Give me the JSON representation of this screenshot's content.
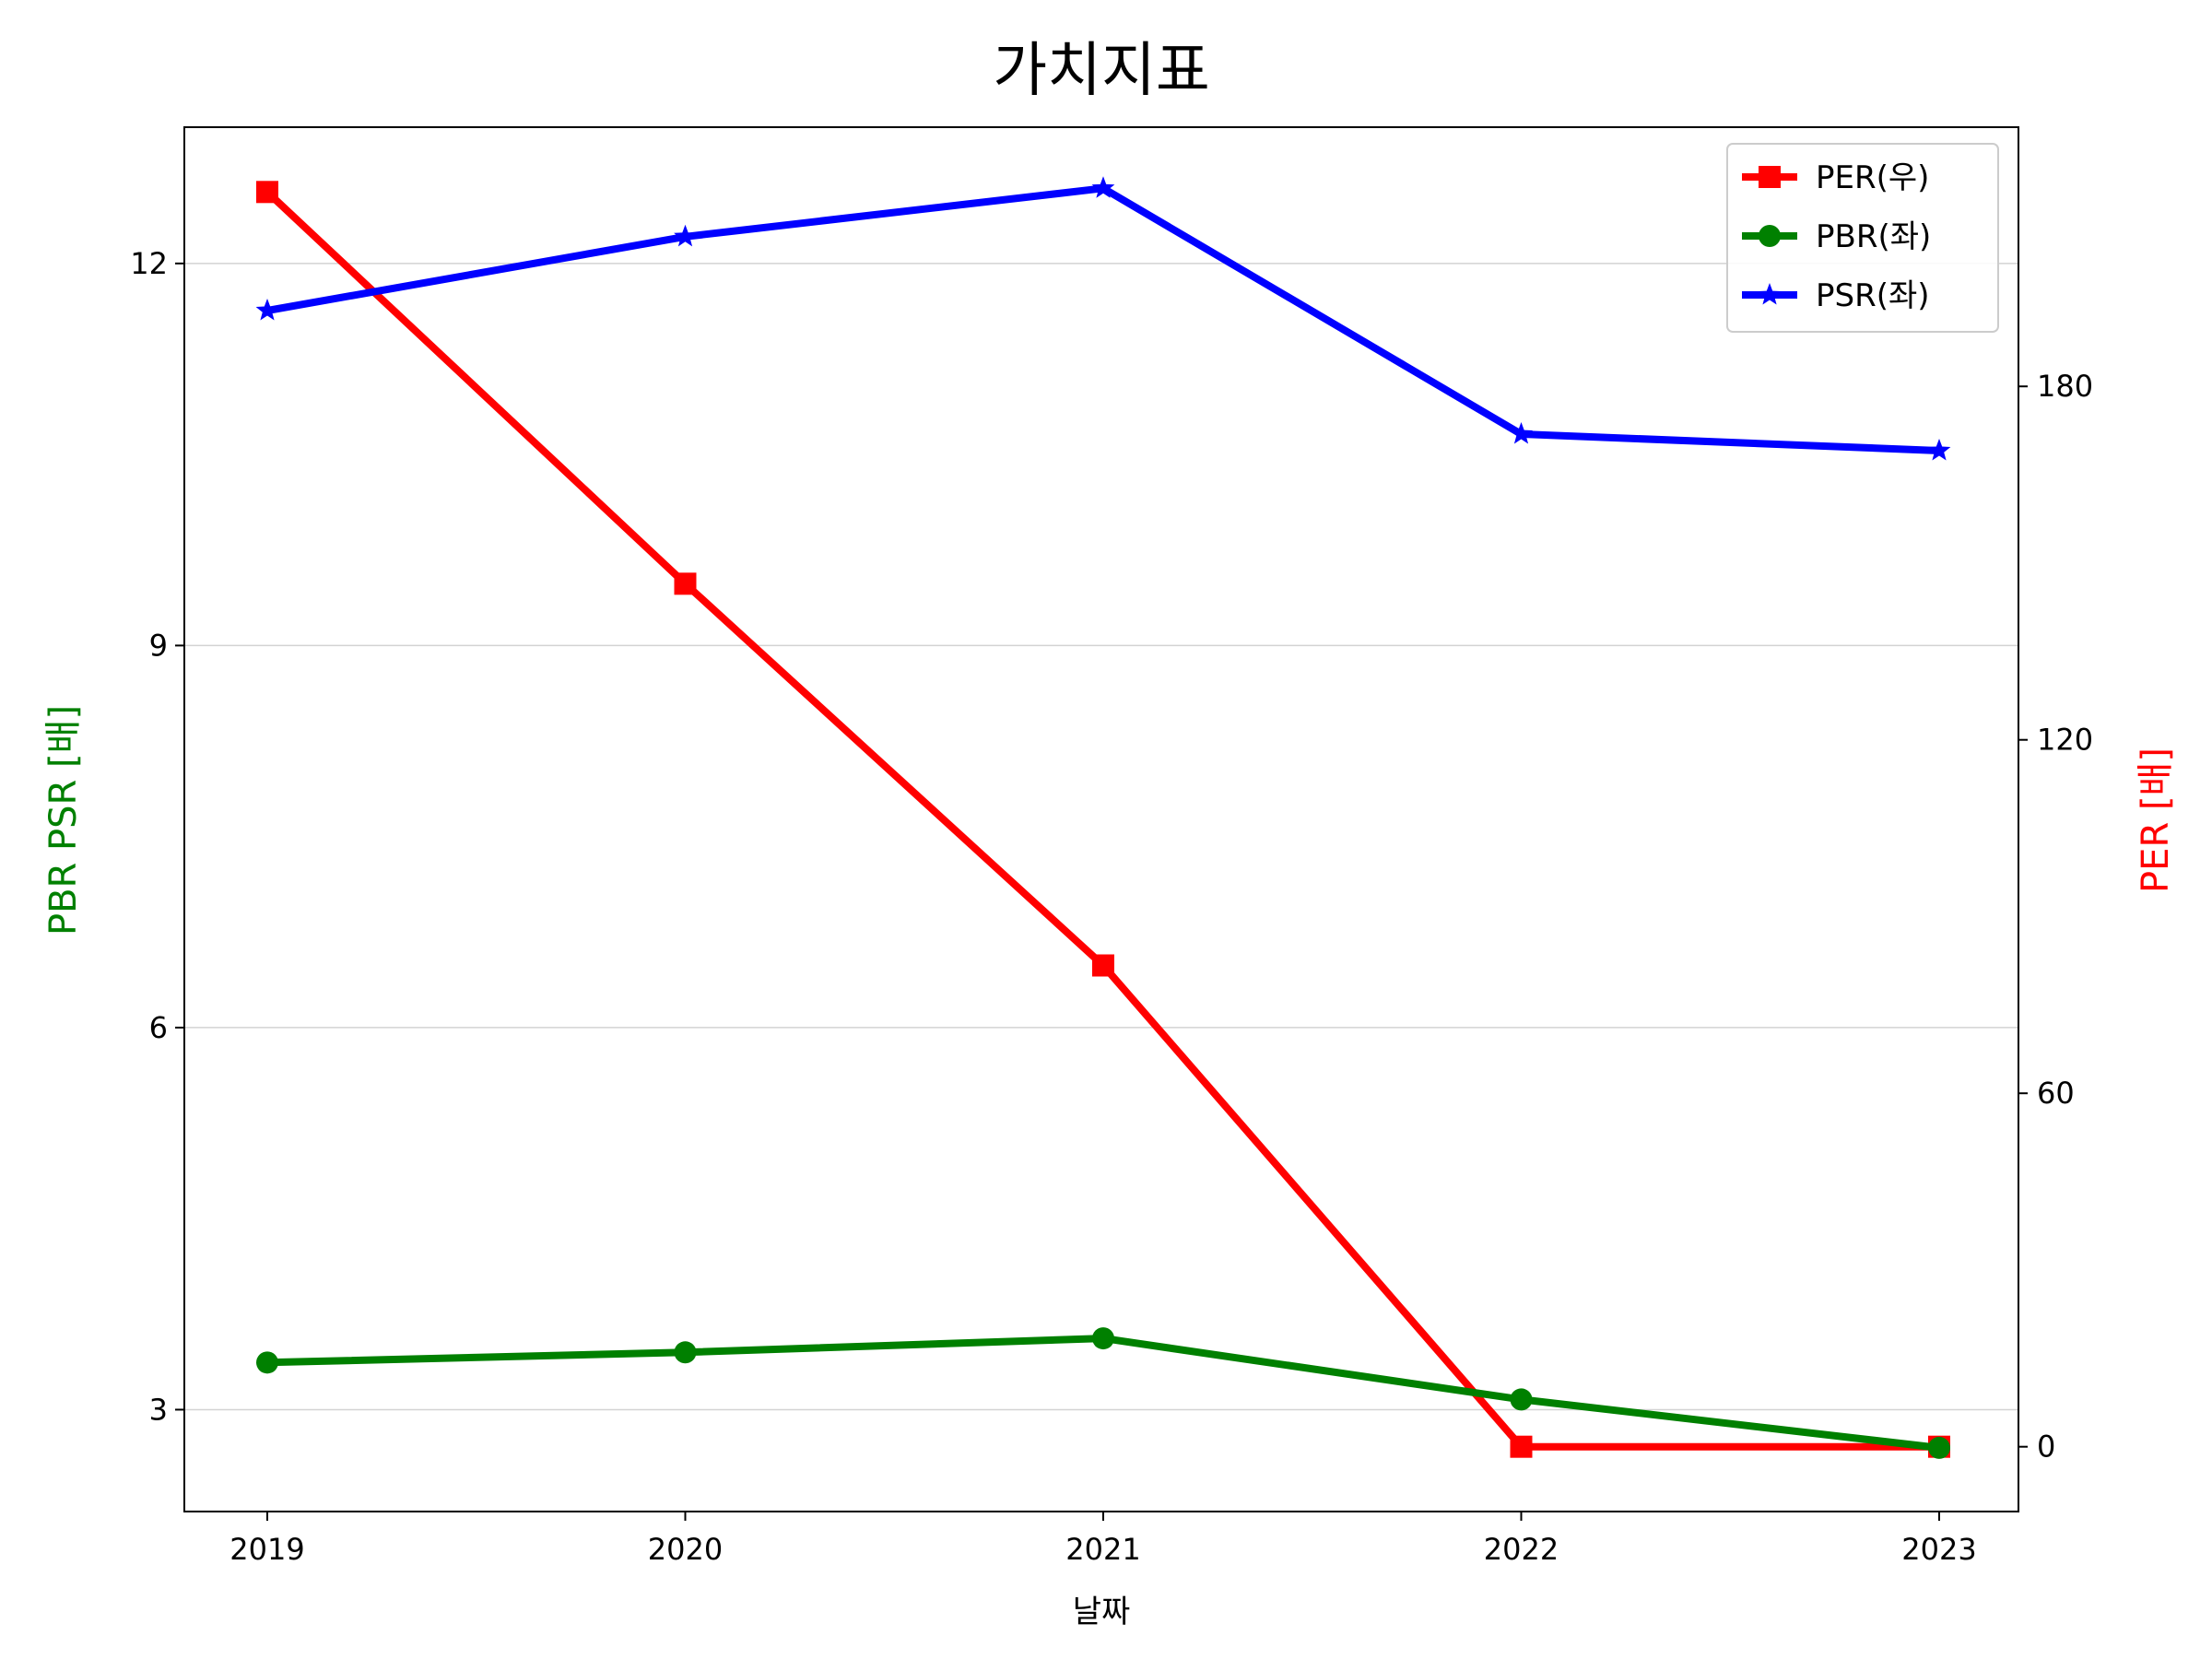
{
  "chart_data": {
    "type": "line",
    "title": "가치지표",
    "xlabel": "날짜",
    "ylabel_left": "PBR PSR [배]",
    "ylabel_right": "PER [배]",
    "categories": [
      "2019",
      "2020",
      "2021",
      "2022",
      "2023"
    ],
    "left_axis": {
      "ylim": [
        2.2,
        13.07
      ],
      "ticks": [
        "3",
        "6",
        "9",
        "12"
      ]
    },
    "right_axis": {
      "ylim": [
        -11.0,
        224.0
      ],
      "ticks": [
        "0",
        "60",
        "120",
        "180"
      ]
    },
    "grid": "horizontal (left axis)",
    "legend_position": "top-right",
    "series": [
      {
        "name": "PER(우)",
        "axis": "right",
        "color": "#ff0000",
        "marker": "square",
        "values": [
          213.0,
          146.5,
          81.7,
          0.0,
          0.0
        ]
      },
      {
        "name": "PBR(좌)",
        "axis": "left",
        "color": "#008000",
        "marker": "circle",
        "values": [
          3.37,
          3.45,
          3.56,
          3.08,
          2.7
        ]
      },
      {
        "name": "PSR(좌)",
        "axis": "left",
        "color": "#0000ff",
        "marker": "star",
        "values": [
          11.63,
          12.21,
          12.59,
          10.66,
          10.53
        ]
      }
    ],
    "left_label_color": "#008000",
    "right_label_color": "#ff0000"
  }
}
